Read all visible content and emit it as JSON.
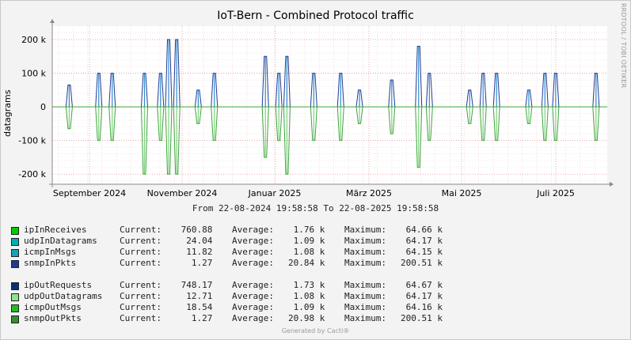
{
  "page": {
    "title": "IoT-Bern - Combined Protocol traffic",
    "side_label": "RRDTOOL / TOBI OETIKER",
    "range_text": "From 22-08-2024 19:58:58 To 22-08-2025 19:58:58",
    "footer": "Generated by Cacti®"
  },
  "chart_data": {
    "type": "area",
    "title": "IoT-Bern - Combined Protocol traffic",
    "ylabel": "datagrams",
    "ylim": [
      -230000,
      240000
    ],
    "yticks": [
      {
        "value": 200000,
        "label": "200 k"
      },
      {
        "value": 100000,
        "label": "100 k"
      },
      {
        "value": 0,
        "label": "0"
      },
      {
        "value": -100000,
        "label": "-100 k"
      },
      {
        "value": -200000,
        "label": "-200 k"
      }
    ],
    "xticks": [
      "September 2024",
      "November 2024",
      "Januar 2025",
      "März 2025",
      "Mai 2025",
      "Juli 2025"
    ],
    "grid": true,
    "colors": {
      "inbound": "#1f3a93",
      "outbound": "#3aa63a",
      "inbound_fill": "#2e8bd0",
      "outbound_fill": "#7fd17f"
    },
    "series": [
      {
        "name": "ipInReceives",
        "color": "#00cc00",
        "current": "760.88",
        "average": "1.76 k",
        "maximum": "64.66 k"
      },
      {
        "name": "udpInDatagrams",
        "color": "#00b0b0",
        "current": "24.04",
        "average": "1.09 k",
        "maximum": "64.17 k"
      },
      {
        "name": "icmpInMsgs",
        "color": "#1aa0b8",
        "current": "11.82",
        "average": "1.08 k",
        "maximum": "64.15 k"
      },
      {
        "name": "snmpInPkts",
        "color": "#1f3a93",
        "current": "1.27",
        "average": "20.84 k",
        "maximum": "200.51 k"
      },
      {
        "name": "ipOutRequests",
        "color": "#0c2c7a",
        "current": "748.17",
        "average": "1.73 k",
        "maximum": "64.67 k"
      },
      {
        "name": "udpOutDatagrams",
        "color": "#8fe08f",
        "current": "12.71",
        "average": "1.08 k",
        "maximum": "64.17 k"
      },
      {
        "name": "icmpOutMsgs",
        "color": "#22bb22",
        "current": "18.54",
        "average": "1.09 k",
        "maximum": "64.16 k"
      },
      {
        "name": "snmpOutPkts",
        "color": "#3a8a3a",
        "current": "1.27",
        "average": "20.98 k",
        "maximum": "200.51 k"
      }
    ],
    "labels": {
      "current": "Current:",
      "average": "Average:",
      "maximum": "Maximum:"
    },
    "activity": {
      "description": "inbound (positive) and outbound (negative) totals per interval, datagrams",
      "peaks": [
        {
          "x": 0.005,
          "in": 65000,
          "out": -65000
        },
        {
          "x": 0.06,
          "in": 100000,
          "out": -100000
        },
        {
          "x": 0.085,
          "in": 100000,
          "out": -100000
        },
        {
          "x": 0.145,
          "in": 100000,
          "out": -200000
        },
        {
          "x": 0.175,
          "in": 100000,
          "out": -100000
        },
        {
          "x": 0.19,
          "in": 200000,
          "out": -200000
        },
        {
          "x": 0.205,
          "in": 200000,
          "out": -200000
        },
        {
          "x": 0.245,
          "in": 50000,
          "out": -50000
        },
        {
          "x": 0.275,
          "in": 100000,
          "out": -100000
        },
        {
          "x": 0.37,
          "in": 150000,
          "out": -150000
        },
        {
          "x": 0.395,
          "in": 100000,
          "out": -100000
        },
        {
          "x": 0.41,
          "in": 150000,
          "out": -200000
        },
        {
          "x": 0.46,
          "in": 100000,
          "out": -100000
        },
        {
          "x": 0.51,
          "in": 100000,
          "out": -100000
        },
        {
          "x": 0.545,
          "in": 50000,
          "out": -50000
        },
        {
          "x": 0.605,
          "in": 80000,
          "out": -80000
        },
        {
          "x": 0.655,
          "in": 180000,
          "out": -180000
        },
        {
          "x": 0.675,
          "in": 100000,
          "out": -100000
        },
        {
          "x": 0.75,
          "in": 50000,
          "out": -50000
        },
        {
          "x": 0.775,
          "in": 100000,
          "out": -100000
        },
        {
          "x": 0.8,
          "in": 100000,
          "out": -100000
        },
        {
          "x": 0.86,
          "in": 50000,
          "out": -50000
        },
        {
          "x": 0.89,
          "in": 100000,
          "out": -100000
        },
        {
          "x": 0.91,
          "in": 100000,
          "out": -100000
        },
        {
          "x": 0.985,
          "in": 100000,
          "out": -100000
        }
      ]
    }
  }
}
